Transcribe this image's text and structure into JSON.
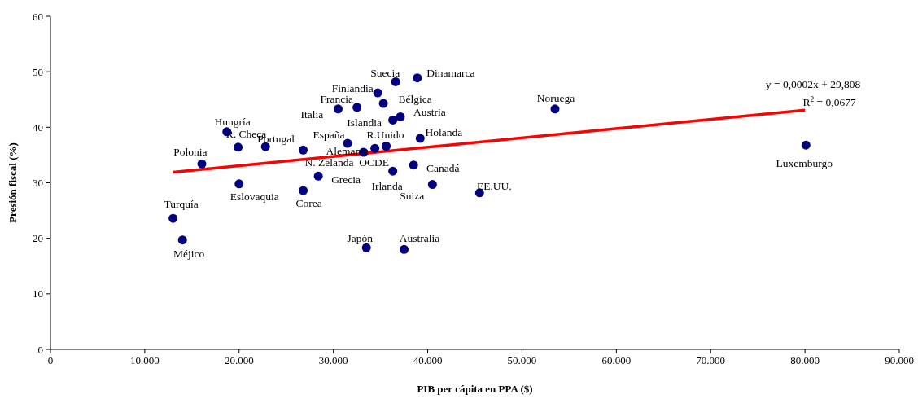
{
  "chart_data": {
    "type": "scatter",
    "xlabel": "PIB per cápita en PPA ($)",
    "ylabel": "Presión fiscal (%)",
    "xlim": [
      0,
      90000
    ],
    "ylim": [
      0,
      60
    ],
    "xticks": [
      0,
      {
        "value": 10000,
        "label": "10.000"
      },
      {
        "value": 20000,
        "label": "20.000"
      },
      {
        "value": 30000,
        "label": "30.000"
      },
      {
        "value": 40000,
        "label": "40.000"
      },
      {
        "value": 50000,
        "label": "50.000"
      },
      {
        "value": 60000,
        "label": "60.000"
      },
      {
        "value": 70000,
        "label": "70.000"
      },
      {
        "value": 80000,
        "label": "80.000"
      },
      {
        "value": 90000,
        "label": "90.000"
      }
    ],
    "yticks": [
      0,
      10,
      20,
      30,
      40,
      50,
      60
    ],
    "grid": false,
    "series": [
      {
        "color": "#000080",
        "marker": "circle",
        "x": [
          13000,
          14000,
          16050,
          18700,
          19900,
          20000,
          22800,
          26800,
          26800,
          28400,
          30500,
          31500,
          32500,
          33200,
          34400,
          35600,
          34700,
          35300,
          36600,
          38900,
          36300,
          37100,
          39200,
          36300,
          38500,
          40500,
          45500,
          33500,
          37500,
          53500,
          80100
        ],
        "values": [
          23.6,
          19.7,
          33.4,
          39.2,
          36.4,
          29.8,
          36.5,
          28.6,
          35.9,
          31.2,
          43.3,
          37.1,
          43.6,
          35.5,
          36.2,
          36.6,
          46.2,
          44.3,
          48.2,
          48.9,
          41.3,
          41.9,
          38.0,
          32.1,
          33.2,
          29.7,
          28.2,
          18.3,
          18.0,
          43.3,
          36.8
        ]
      },
      {
        "type": "line",
        "color": "#ff0000",
        "marker": "none",
        "x": [
          13000,
          80000
        ],
        "values": [
          31.9,
          43.1
        ]
      }
    ],
    "annotations": [
      {
        "text": "Turquía",
        "x": 13000,
        "y": 23.6
      },
      {
        "text": "Méjico",
        "x": 14000,
        "y": 19.7
      },
      {
        "text": "Polonia",
        "x": 16050,
        "y": 33.4
      },
      {
        "text": "Hungría",
        "x": 18700,
        "y": 39.2
      },
      {
        "text": "R. Checa",
        "x": 19900,
        "y": 36.4
      },
      {
        "text": "Eslovaquia",
        "x": 20000,
        "y": 29.8
      },
      {
        "text": "Portugal",
        "x": 22800,
        "y": 36.5
      },
      {
        "text": "Corea",
        "x": 26800,
        "y": 28.6
      },
      {
        "text": "N. Zelanda",
        "x": 26800,
        "y": 35.9
      },
      {
        "text": "Grecia",
        "x": 28400,
        "y": 31.2
      },
      {
        "text": "Italia",
        "x": 30500,
        "y": 43.3
      },
      {
        "text": "España",
        "x": 31500,
        "y": 37.1
      },
      {
        "text": "Francia",
        "x": 32500,
        "y": 43.6
      },
      {
        "text": "Alemania",
        "x": 33200,
        "y": 35.5
      },
      {
        "text": "OCDE",
        "x": 34400,
        "y": 36.2
      },
      {
        "text": "R.Unido",
        "x": 35600,
        "y": 36.6
      },
      {
        "text": "Finlandia",
        "x": 34700,
        "y": 46.2
      },
      {
        "text": "Bélgica",
        "x": 35300,
        "y": 44.3
      },
      {
        "text": "Suecia",
        "x": 36600,
        "y": 48.2
      },
      {
        "text": "Dinamarca",
        "x": 38900,
        "y": 48.9
      },
      {
        "text": "Islandia",
        "x": 36300,
        "y": 41.3
      },
      {
        "text": "Austria",
        "x": 37100,
        "y": 41.9
      },
      {
        "text": "Holanda",
        "x": 39200,
        "y": 38.0
      },
      {
        "text": "Irlanda",
        "x": 36300,
        "y": 32.1
      },
      {
        "text": "Canadá",
        "x": 38500,
        "y": 33.2
      },
      {
        "text": "Suiza",
        "x": 40500,
        "y": 29.7
      },
      {
        "text": "EE.UU.",
        "x": 45500,
        "y": 28.2
      },
      {
        "text": "Japón",
        "x": 33500,
        "y": 18.3
      },
      {
        "text": "Australia",
        "x": 37500,
        "y": 18.0
      },
      {
        "text": "Noruega",
        "x": 53500,
        "y": 43.3
      },
      {
        "text": "Luxemburgo",
        "x": 80100,
        "y": 36.8
      },
      {
        "text": "y = 0,0002x + 29,808",
        "x": 80000,
        "y": 43.1
      },
      {
        "text": "R$^{2}$ = 0,0677",
        "x": 80000,
        "y": 43.1
      }
    ]
  }
}
